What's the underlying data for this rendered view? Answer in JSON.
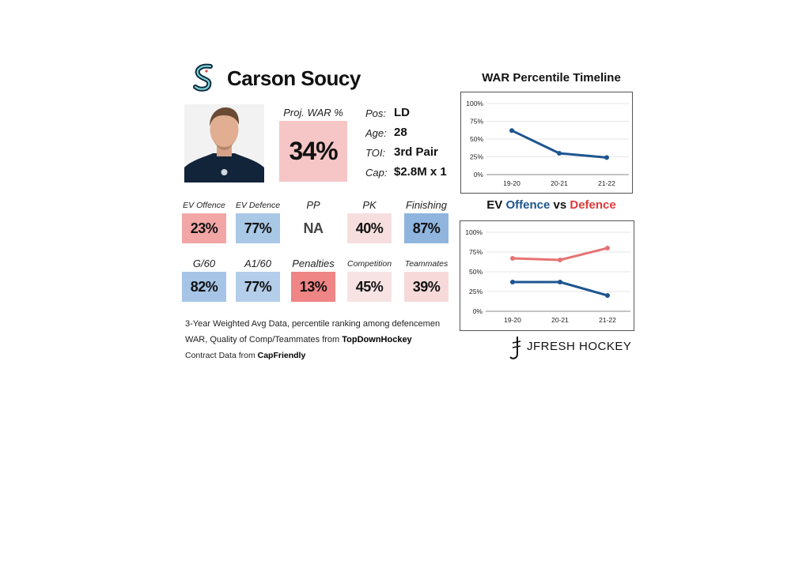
{
  "header": {
    "player_name": "Carson Soucy",
    "team_logo_icon": "kraken-logo-icon"
  },
  "proj_war": {
    "label": "Proj. WAR %",
    "value": "34%",
    "color": "#f6c6c6"
  },
  "info": [
    {
      "label": "Pos:",
      "value": "LD"
    },
    {
      "label": "Age:",
      "value": "28"
    },
    {
      "label": "TOI:",
      "value": "3rd Pair"
    },
    {
      "label": "Cap:",
      "value": "$2.8M x 1"
    }
  ],
  "stats_row1": [
    {
      "label": "EV Offence",
      "value": "23%",
      "color": "#f2a6a6",
      "big": false
    },
    {
      "label": "EV Defence",
      "value": "77%",
      "color": "#a9c8e6",
      "big": false
    },
    {
      "label": "PP",
      "value": "NA",
      "color": "#ffffff",
      "big": true,
      "muted": true
    },
    {
      "label": "PK",
      "value": "40%",
      "color": "#f7dede",
      "big": true
    },
    {
      "label": "Finishing",
      "value": "87%",
      "color": "#8fb5df",
      "big": true
    }
  ],
  "stats_row2": [
    {
      "label": "G/60",
      "value": "82%",
      "color": "#a6c5e6",
      "big": true
    },
    {
      "label": "A1/60",
      "value": "77%",
      "color": "#b3cdea",
      "big": true
    },
    {
      "label": "Penalties",
      "value": "13%",
      "color": "#ef8585",
      "big": true
    },
    {
      "label": "Competition",
      "value": "45%",
      "color": "#f7e3e3",
      "big": false
    },
    {
      "label": "Teammates",
      "value": "39%",
      "color": "#f7d9d9",
      "big": false
    }
  ],
  "notes": {
    "line1": "3-Year Weighted Avg Data, percentile ranking among defencemen",
    "line2_prefix": "WAR, Quality of Comp/Teammates from ",
    "line2_bold": "TopDownHockey",
    "line3_prefix": "Contract Data from ",
    "line3_bold": "CapFriendly"
  },
  "brand": {
    "text": "JFRESH HOCKEY",
    "icon": "jfresh-logo-icon"
  },
  "chart_data": [
    {
      "type": "line",
      "title": "WAR Percentile Timeline",
      "categories": [
        "19-20",
        "20-21",
        "21-22"
      ],
      "series": [
        {
          "values": [
            62,
            30,
            24
          ],
          "color": "#1d5590"
        }
      ],
      "ylim": [
        0,
        100
      ],
      "yticks": [
        "0%",
        "25%",
        "50%",
        "75%",
        "100%"
      ],
      "grid": true
    },
    {
      "type": "line",
      "title_parts": [
        {
          "text": "EV ",
          "color": "#111111"
        },
        {
          "text": "Offence",
          "color": "#1d5590"
        },
        {
          "text": " vs ",
          "color": "#111111"
        },
        {
          "text": "Defence",
          "color": "#e03a3a"
        }
      ],
      "categories": [
        "19-20",
        "20-21",
        "21-22"
      ],
      "series": [
        {
          "name": "Offence",
          "values": [
            37,
            37,
            20
          ],
          "color": "#1d5590"
        },
        {
          "name": "Defence",
          "values": [
            67,
            65,
            80
          ],
          "color": "#e87272"
        }
      ],
      "ylim": [
        0,
        100
      ],
      "yticks": [
        "0%",
        "25%",
        "50%",
        "75%",
        "100%"
      ],
      "grid": true
    }
  ]
}
